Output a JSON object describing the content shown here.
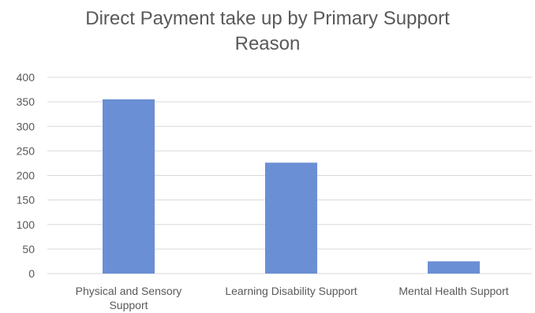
{
  "chart_data": {
    "type": "bar",
    "title_lines": [
      "Direct Payment take up by Primary Support",
      "Reason"
    ],
    "categories": [
      "Physical and Sensory Support",
      "Learning Disability Support",
      "Mental Health Support"
    ],
    "category_label_lines": [
      [
        "Physical and Sensory",
        "Support"
      ],
      [
        "Learning Disability Support"
      ],
      [
        "Mental Health Support"
      ]
    ],
    "values": [
      355,
      226,
      25
    ],
    "ylim": [
      0,
      400
    ],
    "yticks": [
      "0",
      "50",
      "100",
      "150",
      "200",
      "250",
      "300",
      "350",
      "400"
    ],
    "grid": true,
    "legend": "none",
    "colors": {
      "bar": "#6A8FD4",
      "grid": "#D9D9D9",
      "axis_text": "#595959",
      "title": "#595959"
    }
  }
}
